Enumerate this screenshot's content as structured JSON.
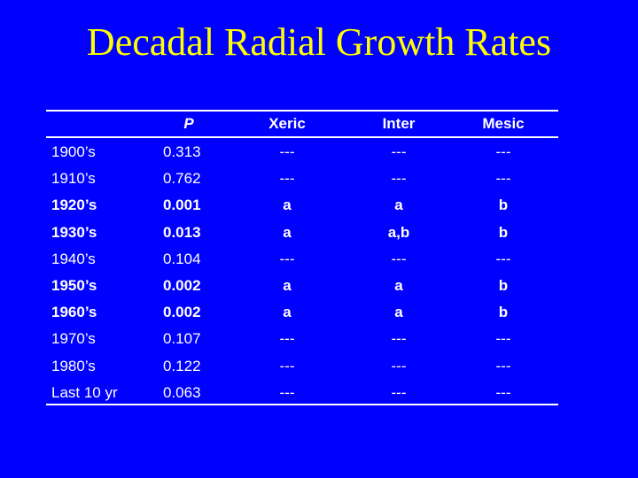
{
  "slide": {
    "title": "Decadal Radial Growth Rates"
  },
  "table": {
    "headers": {
      "decade": "",
      "p": "P",
      "xeric": "Xeric",
      "inter": "Inter",
      "mesic": "Mesic"
    },
    "rows": [
      {
        "decade": "1900’s",
        "p": "0.313",
        "xeric": "---",
        "inter": "---",
        "mesic": "---",
        "significant": false
      },
      {
        "decade": "1910’s",
        "p": "0.762",
        "xeric": "---",
        "inter": "---",
        "mesic": "---",
        "significant": false
      },
      {
        "decade": "1920’s",
        "p": "0.001",
        "xeric": "a",
        "inter": "a",
        "mesic": "b",
        "significant": true
      },
      {
        "decade": "1930’s",
        "p": "0.013",
        "xeric": "a",
        "inter": "a,b",
        "mesic": "b",
        "significant": true
      },
      {
        "decade": "1940’s",
        "p": "0.104",
        "xeric": "---",
        "inter": "---",
        "mesic": "---",
        "significant": false
      },
      {
        "decade": "1950’s",
        "p": "0.002",
        "xeric": "a",
        "inter": "a",
        "mesic": "b",
        "significant": true
      },
      {
        "decade": "1960’s",
        "p": "0.002",
        "xeric": "a",
        "inter": "a",
        "mesic": "b",
        "significant": true
      },
      {
        "decade": "1970’s",
        "p": "0.107",
        "xeric": "---",
        "inter": "---",
        "mesic": "---",
        "significant": false
      },
      {
        "decade": "1980’s",
        "p": "0.122",
        "xeric": "---",
        "inter": "---",
        "mesic": "---",
        "significant": false
      },
      {
        "decade": "Last 10 yr",
        "p": "0.063",
        "xeric": "---",
        "inter": "---",
        "mesic": "---",
        "significant": false
      }
    ]
  },
  "colors": {
    "background": "#0000ff",
    "title": "#ffff00",
    "text": "#ffffff"
  }
}
